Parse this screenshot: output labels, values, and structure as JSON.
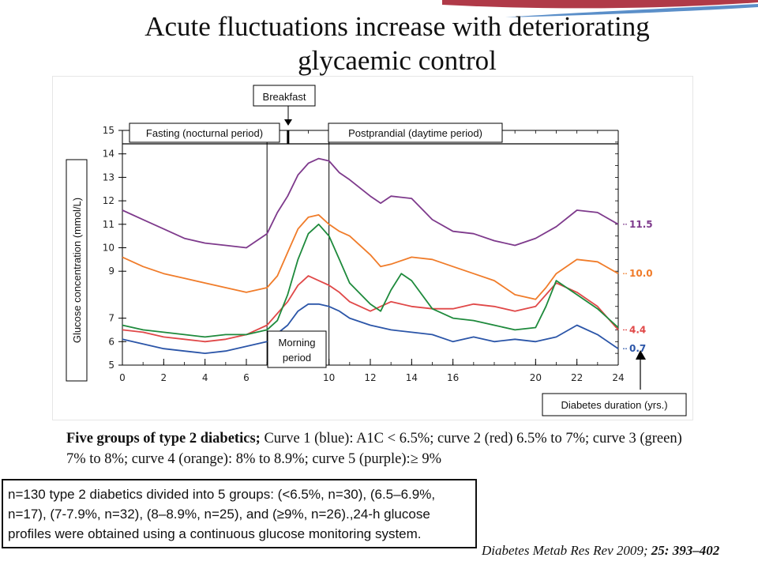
{
  "slide": {
    "title_line1": "Acute fluctuations increase with deteriorating",
    "title_line2": "glycaemic control",
    "caption_bold": "Five groups of type 2 diabetics;",
    "caption_text": " Curve 1 (blue): A1C < 6.5%; curve 2 (red) 6.5% to 7%; curve 3 (green) 7% to 8%; curve 4 (orange): 8% to 8.9%; curve 5 (purple):≥ 9%",
    "note": "n=130 type 2 diabetics divided into 5 groups: (<6.5%, n=30), (6.5–6.9%, n=17), (7-7.9%, n=32), (8–8.9%, n=25), and (≥9%, n=26).,24-h glucose profiles were obtained using a continuous glucose monitoring system.",
    "citation_journal": "Diabetes Metab Res Rev 2009;",
    "citation_ref": "25: 393–402"
  },
  "colors": {
    "accent_red": "#b03a48",
    "accent_blue": "#5b8fc9"
  },
  "chart_data": {
    "type": "line",
    "title": "",
    "xlabel": "",
    "ylabel": "Glucose concentration (mmol/L)",
    "xlim": [
      0,
      24
    ],
    "ylim": [
      5,
      15
    ],
    "x_ticks": [
      0,
      2,
      4,
      6,
      10,
      12,
      14,
      16,
      20,
      22,
      24
    ],
    "y_ticks": [
      5,
      6,
      7,
      9,
      10,
      11,
      12,
      13,
      14,
      15
    ],
    "period_labels": {
      "fasting": "Fasting (nocturnal period)",
      "postprandial": "Postprandial (daytime period)",
      "breakfast": "Breakfast",
      "morning": [
        "Morning",
        "period"
      ],
      "duration": "Diabetes duration (yrs.)"
    },
    "period_boundaries": [
      7,
      10
    ],
    "series": [
      {
        "name": "Curve 1 (blue): A1C < 6.5%",
        "color": "#2b55a8",
        "x": [
          0,
          1,
          2,
          3,
          4,
          5,
          6,
          7,
          8,
          8.5,
          9,
          9.5,
          10,
          10.5,
          11,
          12,
          13,
          14,
          15,
          16,
          17,
          18,
          19,
          20,
          21,
          22,
          23,
          24
        ],
        "y": [
          6.1,
          5.9,
          5.7,
          5.6,
          5.5,
          5.6,
          5.8,
          6.0,
          6.7,
          7.3,
          7.6,
          7.6,
          7.5,
          7.3,
          7.0,
          6.7,
          6.5,
          6.4,
          6.3,
          6.0,
          6.2,
          6.0,
          6.1,
          6.0,
          6.2,
          6.7,
          6.3,
          5.7
        ],
        "end_label": "0.7"
      },
      {
        "name": "Curve 2 (red): 6.5% to 7%",
        "color": "#e04848",
        "x": [
          0,
          1,
          2,
          3,
          4,
          5,
          6,
          7,
          8,
          8.5,
          9,
          9.5,
          10,
          10.5,
          11,
          12,
          13,
          14,
          15,
          16,
          17,
          18,
          19,
          20,
          21,
          22,
          23,
          24
        ],
        "y": [
          6.5,
          6.4,
          6.2,
          6.1,
          6.0,
          6.1,
          6.3,
          6.7,
          7.7,
          8.4,
          8.8,
          8.6,
          8.4,
          8.1,
          7.7,
          7.3,
          7.7,
          7.5,
          7.4,
          7.4,
          7.6,
          7.5,
          7.3,
          7.5,
          8.5,
          8.1,
          7.5,
          6.5
        ],
        "end_label": "4.4"
      },
      {
        "name": "Curve 3 (green): 7% to 8%",
        "color": "#1e8a3c",
        "x": [
          0,
          1,
          2,
          3,
          4,
          5,
          6,
          7,
          7.5,
          8,
          8.5,
          9,
          9.5,
          10,
          10.5,
          11,
          12,
          12.5,
          13,
          13.5,
          14,
          15,
          16,
          17,
          18,
          19,
          20,
          20.5,
          21,
          22,
          23,
          24
        ],
        "y": [
          6.7,
          6.5,
          6.4,
          6.3,
          6.2,
          6.3,
          6.3,
          6.5,
          6.9,
          8.0,
          9.5,
          10.6,
          11.0,
          10.5,
          9.5,
          8.5,
          7.6,
          7.3,
          8.2,
          8.9,
          8.6,
          7.4,
          7.0,
          6.9,
          6.7,
          6.5,
          6.6,
          7.5,
          8.6,
          8.0,
          7.4,
          6.6
        ],
        "end_label": ""
      },
      {
        "name": "Curve 4 (orange): 8% to 8.9%",
        "color": "#f07c2a",
        "x": [
          0,
          1,
          2,
          3,
          4,
          5,
          6,
          7,
          7.5,
          8,
          8.5,
          9,
          9.5,
          10,
          10.5,
          11,
          12,
          12.5,
          13,
          14,
          15,
          16,
          17,
          18,
          19,
          20,
          20.5,
          21,
          22,
          23,
          24
        ],
        "y": [
          9.6,
          9.2,
          8.9,
          8.7,
          8.5,
          8.3,
          8.1,
          8.3,
          8.8,
          9.8,
          10.8,
          11.3,
          11.4,
          11.0,
          10.7,
          10.5,
          9.7,
          9.2,
          9.3,
          9.6,
          9.5,
          9.2,
          8.9,
          8.6,
          8.0,
          7.8,
          8.3,
          8.9,
          9.5,
          9.4,
          8.9
        ],
        "end_label": "10.0"
      },
      {
        "name": "Curve 5 (purple): ≥ 9%",
        "color": "#7e3a8c",
        "x": [
          0,
          1,
          2,
          3,
          4,
          5,
          6,
          7,
          7.5,
          8,
          8.5,
          9,
          9.5,
          10,
          10.5,
          11,
          12,
          12.5,
          13,
          14,
          15,
          16,
          17,
          18,
          19,
          20,
          21,
          22,
          23,
          24
        ],
        "y": [
          11.6,
          11.2,
          10.8,
          10.4,
          10.2,
          10.1,
          10.0,
          10.6,
          11.5,
          12.2,
          13.1,
          13.6,
          13.8,
          13.7,
          13.2,
          12.9,
          12.2,
          11.9,
          12.2,
          12.1,
          11.2,
          10.7,
          10.6,
          10.3,
          10.1,
          10.4,
          10.9,
          11.6,
          11.5,
          11.0
        ],
        "end_label": "11.5"
      }
    ]
  }
}
